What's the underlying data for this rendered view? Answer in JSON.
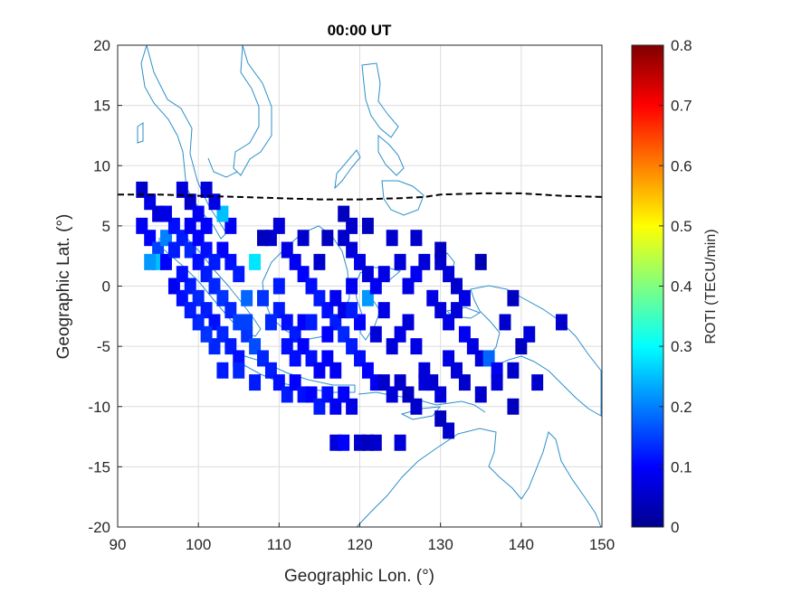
{
  "chart_data": {
    "type": "heatmap",
    "title": "00:00 UT",
    "xlabel": "Geographic Lon. (°)",
    "ylabel": "Geographic Lat. (°)",
    "xlim": [
      90,
      150
    ],
    "ylim": [
      -20,
      20
    ],
    "xticks": [
      "90",
      "100",
      "110",
      "120",
      "130",
      "140",
      "150"
    ],
    "yticks": [
      "20",
      "15",
      "10",
      "5",
      "0",
      "-5",
      "-10",
      "-15",
      "-20"
    ],
    "grid": true,
    "colorbar": {
      "label": "ROTI (TECU/min)",
      "range": [
        0,
        0.8
      ],
      "ticks": [
        "0.8",
        "0.7",
        "0.6",
        "0.5",
        "0.4",
        "0.3",
        "0.2",
        "0.1",
        "0"
      ],
      "colormap": "jet"
    },
    "magnetic_equator": {
      "style": "dashed",
      "color": "#000000",
      "points": [
        [
          90,
          7.6
        ],
        [
          95,
          7.6
        ],
        [
          100,
          7.5
        ],
        [
          105,
          7.4
        ],
        [
          110,
          7.3
        ],
        [
          115,
          7.2
        ],
        [
          120,
          7.2
        ],
        [
          125,
          7.3
        ],
        [
          128,
          7.4
        ],
        [
          130,
          7.6
        ],
        [
          135,
          7.7
        ],
        [
          140,
          7.7
        ],
        [
          145,
          7.5
        ],
        [
          150,
          7.4
        ]
      ]
    },
    "coastline_color": "#2c8fc9",
    "roti_cells": [
      [
        93,
        8,
        0.06
      ],
      [
        94,
        7,
        0.08
      ],
      [
        95,
        6,
        0.07
      ],
      [
        93,
        5,
        0.09
      ],
      [
        94,
        4,
        0.1
      ],
      [
        95,
        3,
        0.15
      ],
      [
        96,
        4,
        0.2
      ],
      [
        95,
        2,
        0.25
      ],
      [
        96,
        2,
        0.1
      ],
      [
        97,
        3,
        0.12
      ],
      [
        98,
        8,
        0.07
      ],
      [
        99,
        7,
        0.06
      ],
      [
        100,
        6,
        0.09
      ],
      [
        101,
        5,
        0.1
      ],
      [
        97,
        5,
        0.11
      ],
      [
        98,
        4,
        0.12
      ],
      [
        99,
        3,
        0.13
      ],
      [
        100,
        2,
        0.11
      ],
      [
        101,
        1,
        0.12
      ],
      [
        102,
        0,
        0.13
      ],
      [
        97,
        0,
        0.09
      ],
      [
        98,
        -1,
        0.11
      ],
      [
        99,
        0,
        0.12
      ],
      [
        100,
        -1,
        0.13
      ],
      [
        101,
        -2,
        0.12
      ],
      [
        102,
        -3,
        0.11
      ],
      [
        103,
        -4,
        0.13
      ],
      [
        104,
        -5,
        0.12
      ],
      [
        105,
        -6,
        0.11
      ],
      [
        103,
        -1,
        0.14
      ],
      [
        104,
        -2,
        0.13
      ],
      [
        105,
        -3,
        0.15
      ],
      [
        106,
        -4,
        0.14
      ],
      [
        107,
        -5,
        0.16
      ],
      [
        106,
        -1,
        0.18
      ],
      [
        104,
        2,
        0.11
      ],
      [
        105,
        1,
        0.12
      ],
      [
        103,
        3,
        0.1
      ],
      [
        104,
        5,
        0.09
      ],
      [
        103,
        6,
        0.25
      ],
      [
        102,
        7,
        0.08
      ],
      [
        101,
        8,
        0.07
      ],
      [
        107,
        2,
        0.28
      ],
      [
        109,
        4,
        0.06
      ],
      [
        110,
        5,
        0.07
      ],
      [
        111,
        3,
        0.08
      ],
      [
        112,
        2,
        0.09
      ],
      [
        113,
        1,
        0.1
      ],
      [
        114,
        0,
        0.11
      ],
      [
        115,
        -1,
        0.12
      ],
      [
        116,
        -2,
        0.11
      ],
      [
        117,
        -3,
        0.12
      ],
      [
        118,
        -4,
        0.13
      ],
      [
        119,
        -5,
        0.12
      ],
      [
        120,
        -6,
        0.11
      ],
      [
        121,
        -7,
        0.1
      ],
      [
        122,
        -8,
        0.09
      ],
      [
        108,
        -6,
        0.13
      ],
      [
        109,
        -7,
        0.12
      ],
      [
        110,
        -8,
        0.11
      ],
      [
        111,
        -9,
        0.12
      ],
      [
        112,
        -8,
        0.1
      ],
      [
        113,
        -9,
        0.11
      ],
      [
        114,
        -9,
        0.1
      ],
      [
        115,
        -10,
        0.12
      ],
      [
        116,
        -9,
        0.11
      ],
      [
        117,
        -10,
        0.09
      ],
      [
        118,
        -9,
        0.1
      ],
      [
        119,
        -10,
        0.08
      ],
      [
        110,
        -2,
        0.12
      ],
      [
        111,
        -3,
        0.11
      ],
      [
        112,
        -4,
        0.12
      ],
      [
        113,
        -5,
        0.1
      ],
      [
        114,
        -6,
        0.11
      ],
      [
        115,
        -7,
        0.09
      ],
      [
        116,
        -6,
        0.1
      ],
      [
        117,
        -7,
        0.09
      ],
      [
        118,
        6,
        0.05
      ],
      [
        118,
        4,
        0.06
      ],
      [
        119,
        3,
        0.07
      ],
      [
        120,
        2,
        0.08
      ],
      [
        121,
        1,
        0.07
      ],
      [
        121,
        -1,
        0.22
      ],
      [
        122,
        0,
        0.09
      ],
      [
        123,
        1,
        0.08
      ],
      [
        124,
        4,
        0.06
      ],
      [
        125,
        2,
        0.07
      ],
      [
        126,
        0,
        0.08
      ],
      [
        127,
        1,
        0.09
      ],
      [
        128,
        2,
        0.07
      ],
      [
        129,
        -1,
        0.08
      ],
      [
        130,
        -2,
        0.07
      ],
      [
        131,
        -3,
        0.08
      ],
      [
        132,
        -2,
        0.07
      ],
      [
        133,
        -4,
        0.09
      ],
      [
        134,
        -5,
        0.08
      ],
      [
        135,
        -6,
        0.07
      ],
      [
        136,
        -6,
        0.18
      ],
      [
        137,
        -7,
        0.09
      ],
      [
        130,
        2,
        0.06
      ],
      [
        131,
        1,
        0.07
      ],
      [
        132,
        0,
        0.06
      ],
      [
        133,
        -1,
        0.08
      ],
      [
        130,
        3,
        0.05
      ],
      [
        127,
        4,
        0.06
      ],
      [
        121,
        5,
        0.05
      ],
      [
        124,
        -5,
        0.07
      ],
      [
        125,
        -4,
        0.08
      ],
      [
        126,
        -3,
        0.07
      ],
      [
        127,
        -5,
        0.08
      ],
      [
        128,
        -7,
        0.07
      ],
      [
        129,
        -8,
        0.06
      ],
      [
        130,
        -9,
        0.07
      ],
      [
        131,
        -6,
        0.08
      ],
      [
        132,
        -7,
        0.07
      ],
      [
        133,
        -8,
        0.06
      ],
      [
        123,
        -8,
        0.06
      ],
      [
        124,
        -9,
        0.07
      ],
      [
        125,
        -8,
        0.06
      ],
      [
        126,
        -9,
        0.05
      ],
      [
        127,
        -10,
        0.06
      ],
      [
        128,
        -8,
        0.07
      ],
      [
        135,
        -9,
        0.06
      ],
      [
        137,
        -8,
        0.07
      ],
      [
        139,
        -7,
        0.06
      ],
      [
        140,
        -5,
        0.05
      ],
      [
        138,
        -3,
        0.06
      ],
      [
        139,
        -1,
        0.05
      ],
      [
        142,
        -8,
        0.06
      ],
      [
        141,
        -4,
        0.07
      ],
      [
        145,
        -3,
        0.06
      ],
      [
        139,
        -10,
        0.05
      ],
      [
        130,
        -11,
        0.05
      ],
      [
        135,
        2,
        0.04
      ],
      [
        117,
        -13,
        0.07
      ],
      [
        118,
        -13,
        0.1
      ],
      [
        120,
        -13,
        0.06
      ],
      [
        121,
        -13,
        0.05
      ],
      [
        122,
        -13,
        0.06
      ],
      [
        125,
        -13,
        0.07
      ],
      [
        131,
        -12,
        0.06
      ],
      [
        108,
        4,
        0.05
      ],
      [
        113,
        4,
        0.06
      ],
      [
        116,
        4,
        0.05
      ],
      [
        119,
        5,
        0.06
      ],
      [
        108,
        -1,
        0.14
      ],
      [
        106,
        -3,
        0.15
      ],
      [
        109,
        -3,
        0.13
      ],
      [
        107,
        -8,
        0.12
      ],
      [
        105,
        -7,
        0.13
      ],
      [
        103,
        -7,
        0.12
      ],
      [
        102,
        -5,
        0.13
      ],
      [
        101,
        -4,
        0.14
      ],
      [
        100,
        -3,
        0.13
      ],
      [
        99,
        -2,
        0.12
      ],
      [
        98,
        1,
        0.11
      ],
      [
        100,
        4,
        0.1
      ],
      [
        101,
        3,
        0.11
      ],
      [
        102,
        2,
        0.12
      ],
      [
        99,
        5,
        0.09
      ],
      [
        96,
        6,
        0.08
      ],
      [
        94,
        2,
        0.22
      ],
      [
        112,
        -6,
        0.11
      ],
      [
        113,
        -3,
        0.1
      ],
      [
        114,
        -3,
        0.12
      ],
      [
        111,
        -5,
        0.11
      ],
      [
        116,
        -4,
        0.1
      ],
      [
        117,
        -1,
        0.09
      ],
      [
        118,
        -2,
        0.08
      ],
      [
        119,
        0,
        0.09
      ],
      [
        120,
        -3,
        0.1
      ],
      [
        119,
        -2,
        0.12
      ],
      [
        122,
        -4,
        0.07
      ],
      [
        123,
        -2,
        0.08
      ],
      [
        115,
        2,
        0.06
      ],
      [
        110,
        0,
        0.12
      ]
    ]
  }
}
